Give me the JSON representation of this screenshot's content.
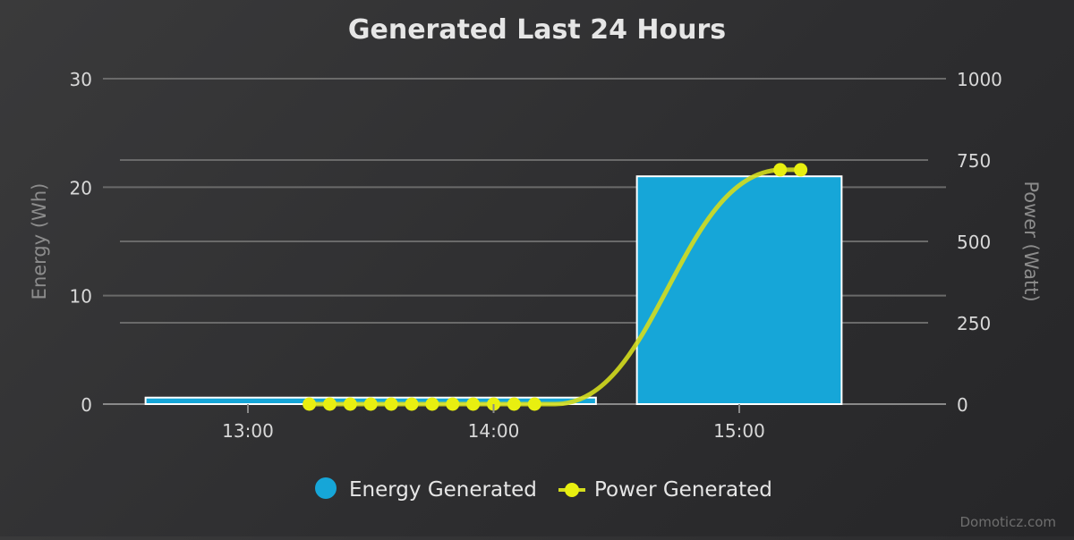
{
  "chart_data": {
    "type": "bar",
    "title": "Generated Last 24 Hours",
    "x_tick_labels": [
      "13:00",
      "14:00",
      "15:00"
    ],
    "left_axis": {
      "label": "Energy (Wh)",
      "range": [
        0,
        30
      ],
      "ticks": [
        "0",
        "10",
        "20",
        "30"
      ]
    },
    "right_axis": {
      "label": "Power (Watt)",
      "range": [
        0,
        1000
      ],
      "ticks": [
        "0",
        "250",
        "500",
        "750",
        "1000"
      ]
    },
    "grid": true,
    "legend_position": "bottom-center",
    "series": [
      {
        "name": "Energy Generated",
        "type": "bar",
        "axis": "left",
        "color": "#16a6d8",
        "bars": [
          {
            "start": "12:35",
            "end": "14:25",
            "value": 0.6
          },
          {
            "start": "14:35",
            "end": "15:25",
            "value": 21
          }
        ]
      },
      {
        "name": "Power Generated",
        "type": "line",
        "axis": "right",
        "color": "#d4dd1e",
        "marker_color": "#e8ef10",
        "points": [
          {
            "time": "13:15",
            "value": 0
          },
          {
            "time": "13:20",
            "value": 0
          },
          {
            "time": "13:25",
            "value": 0
          },
          {
            "time": "13:30",
            "value": 0
          },
          {
            "time": "13:35",
            "value": 0
          },
          {
            "time": "13:40",
            "value": 0
          },
          {
            "time": "13:45",
            "value": 0
          },
          {
            "time": "13:50",
            "value": 0
          },
          {
            "time": "13:55",
            "value": 0
          },
          {
            "time": "14:00",
            "value": 0
          },
          {
            "time": "14:05",
            "value": 0
          },
          {
            "time": "14:10",
            "value": 0
          },
          {
            "time": "15:10",
            "value": 720
          },
          {
            "time": "15:15",
            "value": 720
          }
        ],
        "marker_count": 14
      }
    ],
    "credit": "Domoticz.com"
  }
}
